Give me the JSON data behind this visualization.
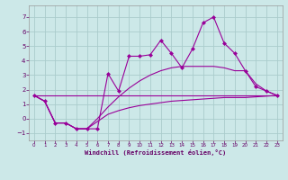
{
  "background_color": "#cce8e8",
  "grid_color": "#aacccc",
  "line_color": "#990099",
  "marker_color": "#990099",
  "xlabel": "Windchill (Refroidissement éolien,°C)",
  "xlabel_color": "#660066",
  "tick_color": "#660066",
  "ylim": [
    -1.5,
    7.8
  ],
  "xlim": [
    -0.5,
    23.5
  ],
  "yticks": [
    -1,
    0,
    1,
    2,
    3,
    4,
    5,
    6,
    7
  ],
  "xticks": [
    0,
    1,
    2,
    3,
    4,
    5,
    6,
    7,
    8,
    9,
    10,
    11,
    12,
    13,
    14,
    15,
    16,
    17,
    18,
    19,
    20,
    21,
    22,
    23
  ],
  "series": [
    {
      "x": [
        0,
        1,
        2,
        3,
        4,
        5,
        6,
        7,
        8,
        9,
        10,
        11,
        12,
        13,
        14,
        15,
        16,
        17,
        18,
        19,
        20,
        21,
        22,
        23
      ],
      "y": [
        1.6,
        1.2,
        -0.3,
        -0.3,
        -0.7,
        -0.7,
        -0.7,
        3.1,
        1.9,
        4.3,
        4.3,
        4.4,
        5.4,
        4.5,
        3.5,
        4.8,
        6.6,
        7.0,
        5.2,
        4.5,
        3.3,
        2.2,
        1.9,
        1.6
      ],
      "has_markers": true
    },
    {
      "x": [
        0,
        1,
        2,
        3,
        4,
        5,
        6,
        7,
        8,
        9,
        10,
        11,
        12,
        13,
        14,
        15,
        16,
        17,
        18,
        19,
        20,
        21,
        22,
        23
      ],
      "y": [
        1.6,
        1.2,
        -0.3,
        -0.3,
        -0.7,
        -0.7,
        0.0,
        0.8,
        1.5,
        2.1,
        2.6,
        3.0,
        3.3,
        3.5,
        3.6,
        3.6,
        3.6,
        3.6,
        3.5,
        3.3,
        3.3,
        2.4,
        1.9,
        1.6
      ],
      "has_markers": false
    },
    {
      "x": [
        0,
        23
      ],
      "y": [
        1.6,
        1.6
      ],
      "has_markers": false
    },
    {
      "x": [
        0,
        1,
        2,
        3,
        4,
        5,
        6,
        7,
        8,
        9,
        10,
        11,
        12,
        13,
        14,
        15,
        16,
        17,
        18,
        19,
        20,
        21,
        22,
        23
      ],
      "y": [
        1.6,
        1.2,
        -0.3,
        -0.3,
        -0.7,
        -0.7,
        -0.2,
        0.3,
        0.55,
        0.75,
        0.9,
        1.0,
        1.1,
        1.2,
        1.25,
        1.3,
        1.35,
        1.4,
        1.45,
        1.45,
        1.45,
        1.5,
        1.55,
        1.6
      ],
      "has_markers": false
    }
  ]
}
